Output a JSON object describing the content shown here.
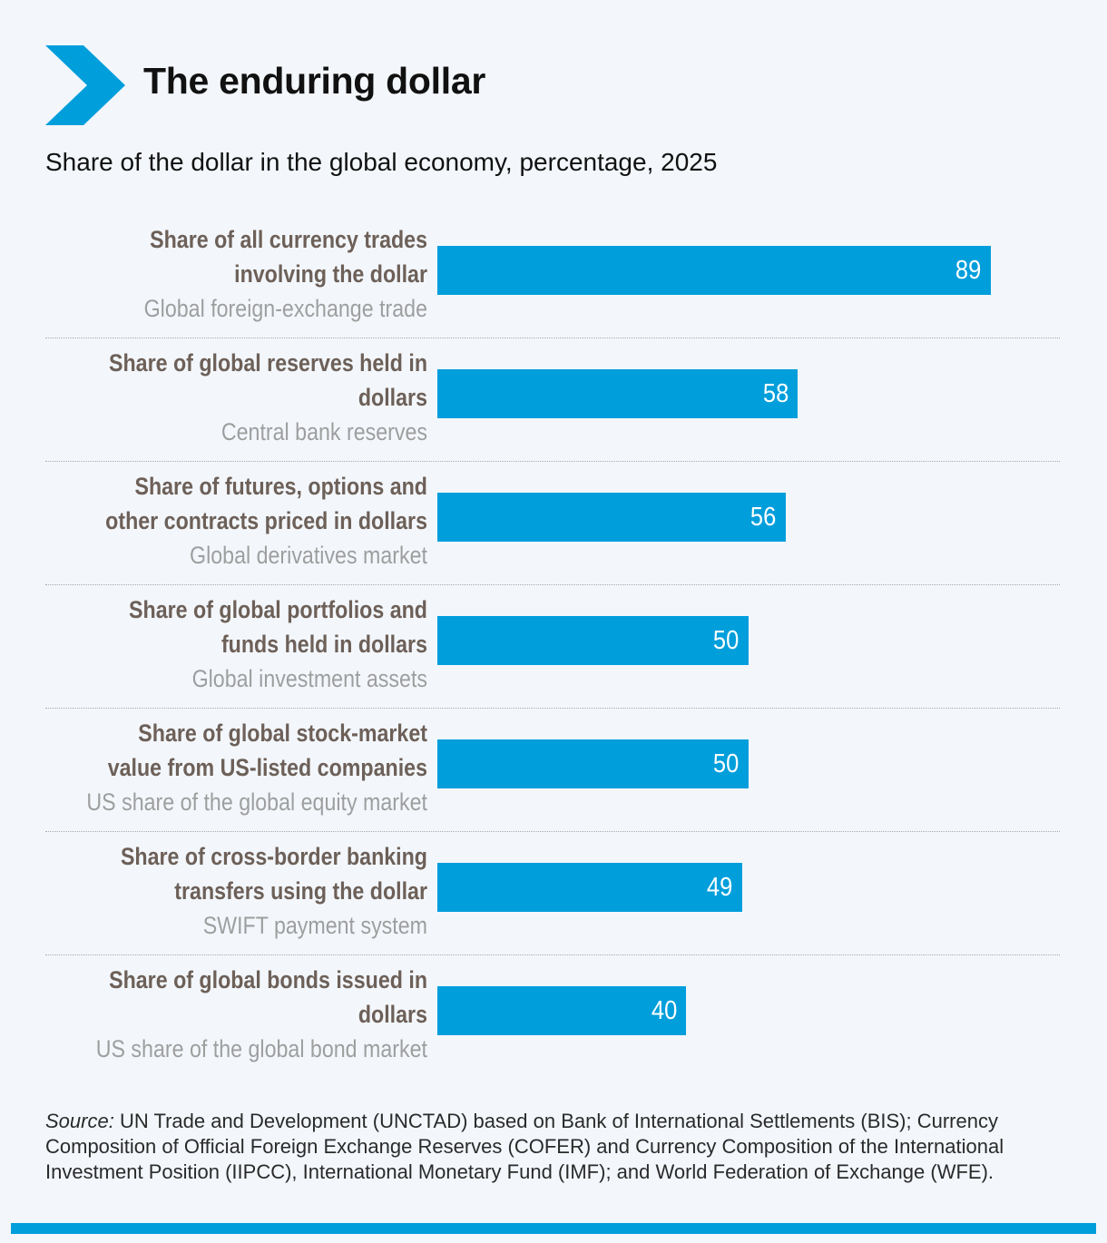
{
  "header": {
    "title": "The enduring dollar",
    "subtitle": "Share of the dollar in the global economy, percentage, 2025",
    "icon": "chevron-right-icon"
  },
  "colors": {
    "accent": "#009edb",
    "label_main": "#6d6058",
    "label_sub": "#9e9e9e",
    "background": "#f3f7fc"
  },
  "chart_data": {
    "type": "bar",
    "orientation": "horizontal",
    "title": "The enduring dollar",
    "subtitle": "Share of the dollar in the global economy, percentage, 2025",
    "xlim": [
      0,
      100
    ],
    "grid": false,
    "categories": [
      {
        "main": "Share of all currency trades involving the dollar",
        "sub": "Global foreign-exchange trade",
        "value": 89
      },
      {
        "main": "Share of global reserves held in dollars",
        "sub": "Central bank reserves",
        "value": 58
      },
      {
        "main": "Share of futures, options and other contracts priced in dollars",
        "sub": "Global derivatives market",
        "value": 56
      },
      {
        "main": "Share of global portfolios and funds held in dollars",
        "sub": "Global investment assets",
        "value": 50
      },
      {
        "main": "Share of global stock-market value from US-listed companies",
        "sub": "US share of the global equity market",
        "value": 50
      },
      {
        "main": "Share of cross-border banking transfers using the dollar",
        "sub": "SWIFT payment system",
        "value": 49
      },
      {
        "main": "Share of global bonds issued in dollars",
        "sub": "US share of the global bond market",
        "value": 40
      }
    ]
  },
  "footer": {
    "source_label": "Source:",
    "source_text": "UN Trade and Development (UNCTAD) based on Bank of International Settlements (BIS); Currency Composition of Official Foreign Exchange Reserves (COFER) and Currency Composition of the International Investment Position (IIPCC), International Monetary Fund (IMF); and World Federation of Exchange (WFE)."
  }
}
